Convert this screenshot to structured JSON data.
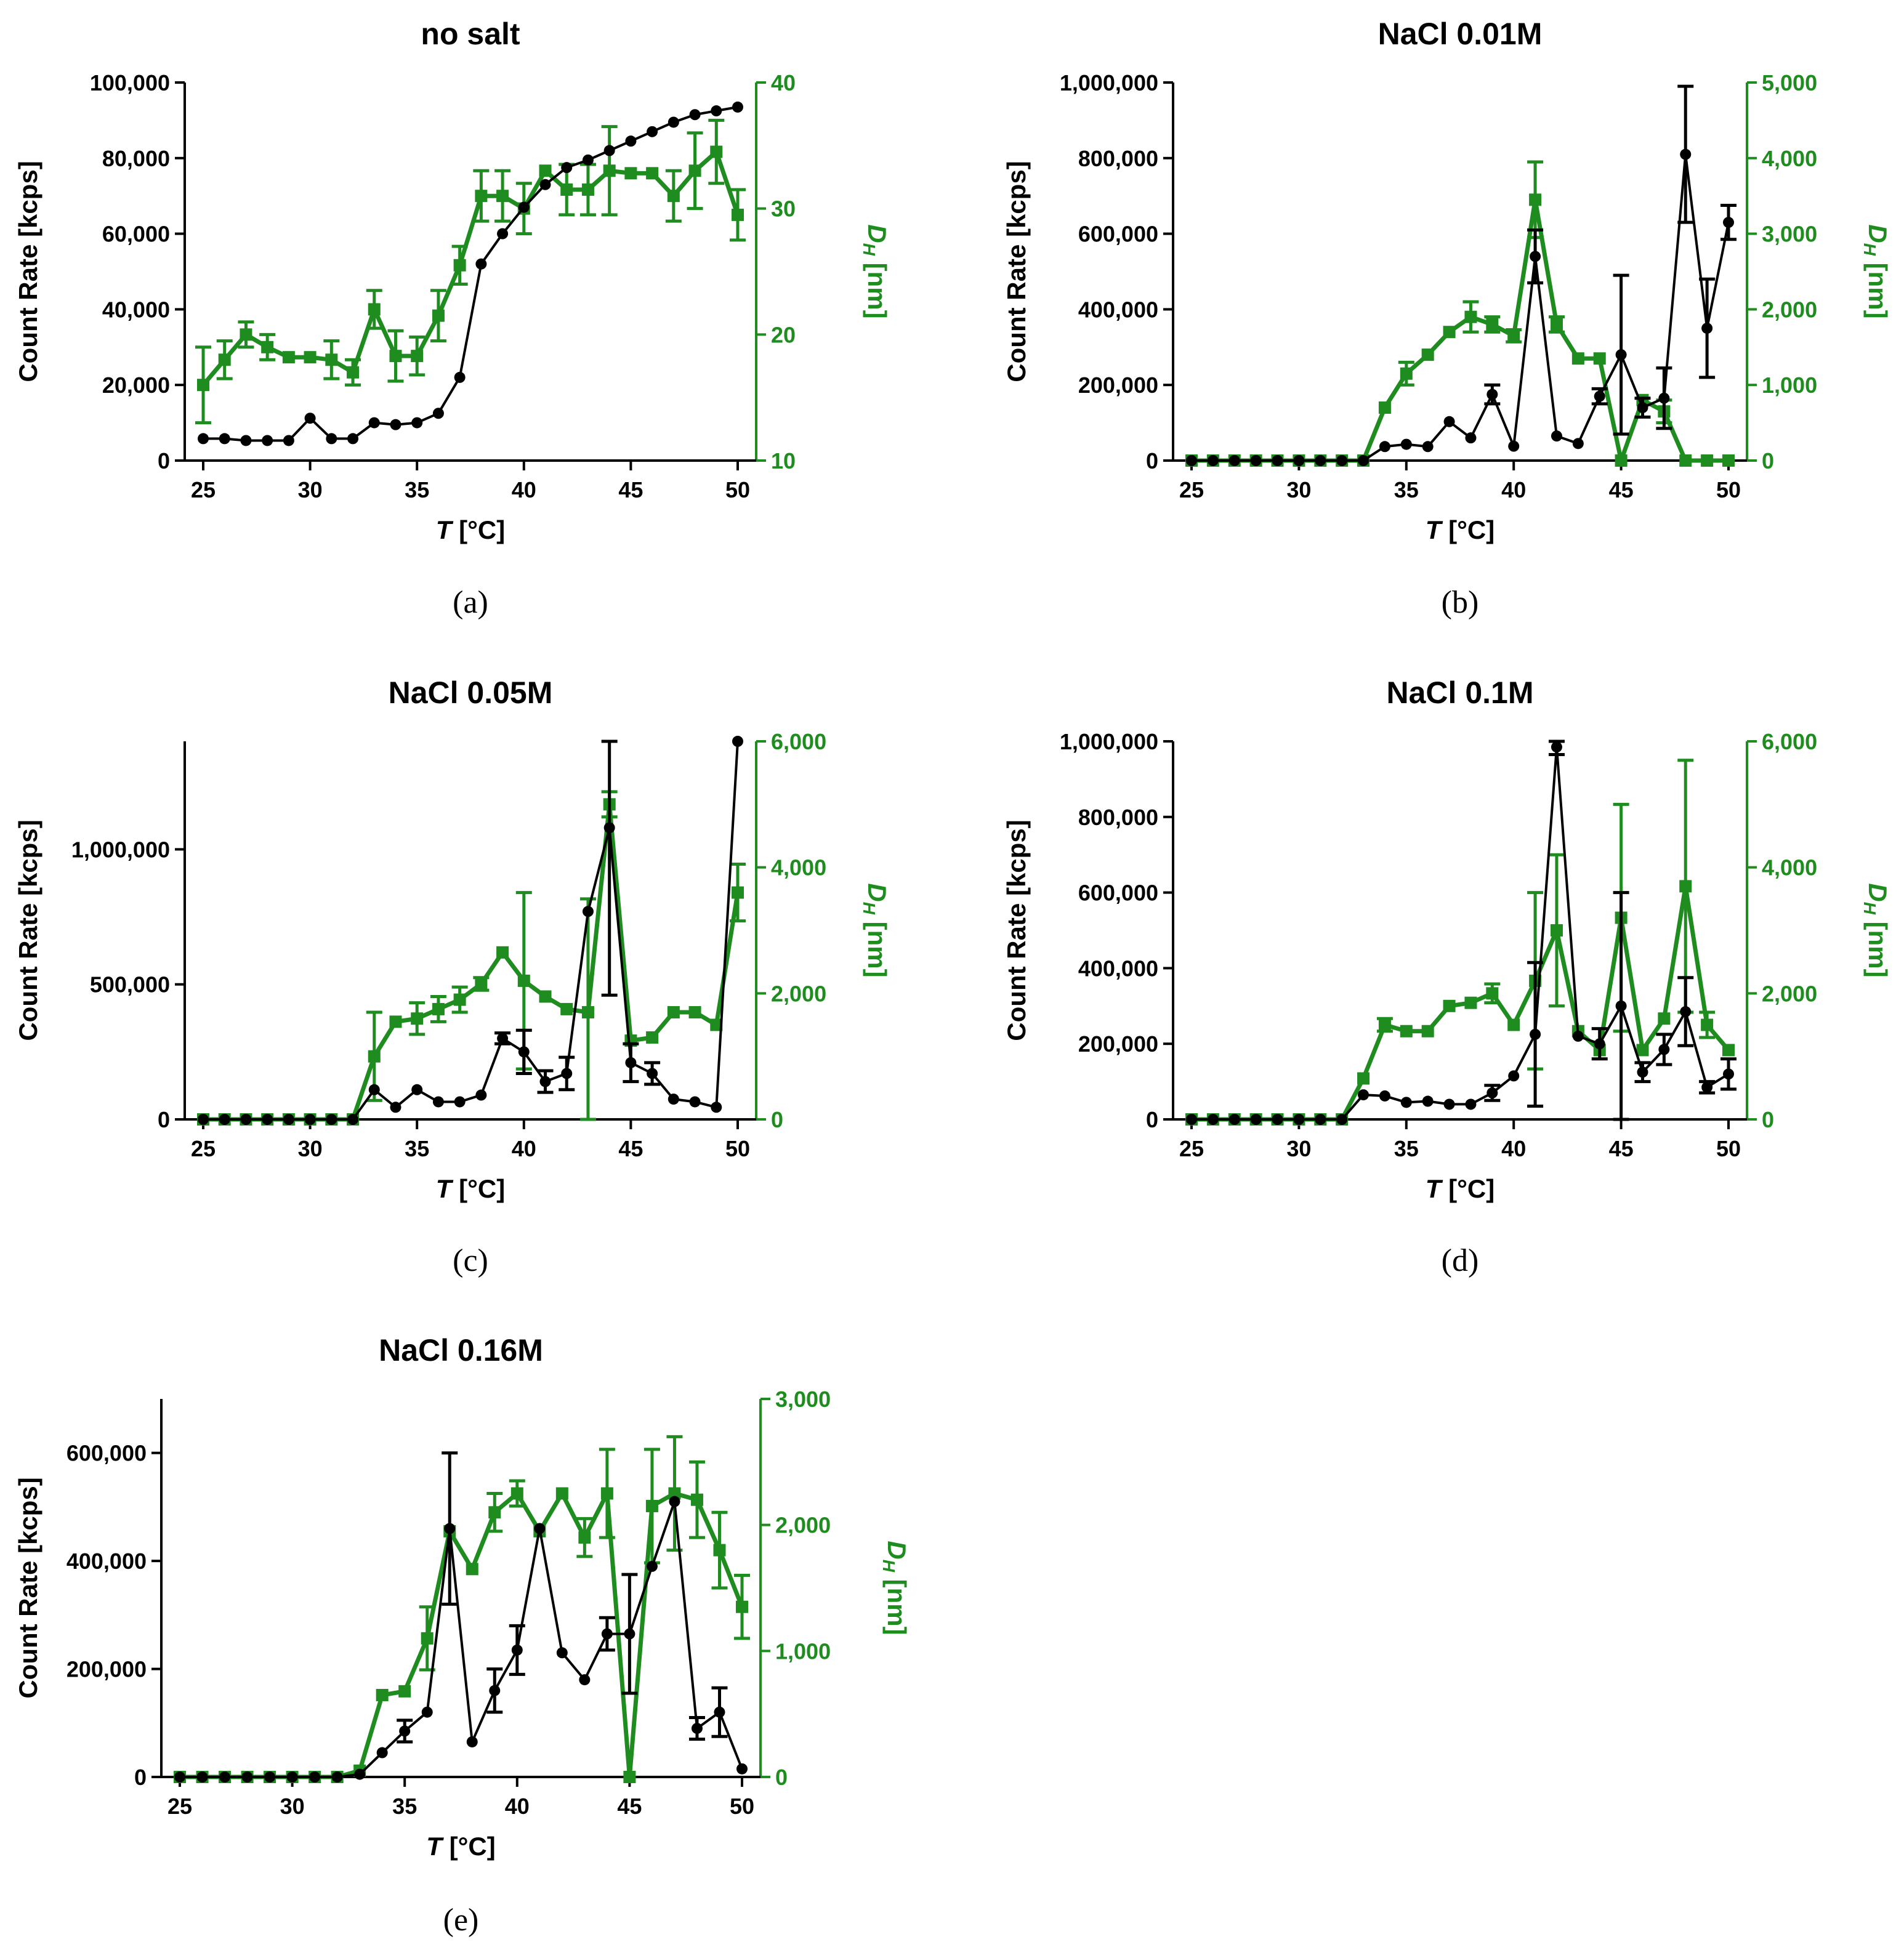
{
  "colors": {
    "count_rate": "#000000",
    "dh": "#1f8c1f"
  },
  "chart_data": [
    {
      "type": "line",
      "panel": "a",
      "caption": "(a)",
      "title": "no salt",
      "xlabel": "T [°C]",
      "ylabel": "Count Rate [kcps]",
      "y2label": "D_H [nm]",
      "xlim": [
        25,
        50
      ],
      "xticks": [
        25,
        30,
        35,
        40,
        45,
        50
      ],
      "ylim": [
        0,
        100000
      ],
      "yticks": [
        0,
        20000,
        40000,
        60000,
        80000,
        100000
      ],
      "ytick_labels": [
        "0",
        "20,000",
        "40,000",
        "60,000",
        "80,000",
        "100,000"
      ],
      "y2lim": [
        10,
        40
      ],
      "y2ticks": [
        10,
        20,
        30,
        40
      ],
      "y2tick_labels": [
        "10",
        "20",
        "30",
        "40"
      ],
      "x": [
        25,
        26,
        27,
        28,
        29,
        30,
        31,
        32,
        33,
        34,
        35,
        36,
        37,
        38,
        39,
        40,
        41,
        42,
        43,
        44,
        45,
        46,
        47,
        48,
        49,
        50
      ],
      "series": [
        {
          "axis": "left",
          "marker": "circle",
          "values": [
            5800,
            5800,
            5300,
            5300,
            5300,
            11200,
            5800,
            5800,
            10000,
            9500,
            10000,
            12500,
            22000,
            52000,
            60000,
            67000,
            73000,
            77500,
            79500,
            82000,
            84500,
            87000,
            89500,
            91500,
            92500,
            93500
          ],
          "errors": [
            0,
            0,
            0,
            0,
            0,
            0,
            0,
            0,
            0,
            0,
            0,
            0,
            0,
            0,
            0,
            0,
            0,
            0,
            0,
            0,
            0,
            0,
            0,
            0,
            0,
            0
          ]
        },
        {
          "axis": "right",
          "marker": "square",
          "values": [
            16,
            18,
            20,
            19,
            18.2,
            18.2,
            18,
            17,
            22,
            18.3,
            18.3,
            21.5,
            25.5,
            31,
            31,
            30,
            33,
            31.5,
            31.5,
            33,
            32.8,
            32.8,
            31,
            33,
            34.5,
            29.5
          ],
          "errors": [
            3,
            1.5,
            1,
            1,
            0,
            0,
            1.5,
            1,
            1.5,
            2,
            1.5,
            2,
            1.5,
            2,
            2,
            2,
            0,
            2,
            2,
            3.5,
            0,
            0,
            2,
            3,
            2.5,
            2
          ]
        }
      ]
    },
    {
      "type": "line",
      "panel": "b",
      "caption": "(b)",
      "title": "NaCl 0.01M",
      "xlabel": "T [°C]",
      "ylabel": "Count Rate [kcps]",
      "y2label": "D_H [nm]",
      "xlim": [
        25,
        50
      ],
      "xticks": [
        25,
        30,
        35,
        40,
        45,
        50
      ],
      "ylim": [
        0,
        1000000
      ],
      "yticks": [
        0,
        200000,
        400000,
        600000,
        800000,
        1000000
      ],
      "ytick_labels": [
        "0",
        "200,000",
        "400,000",
        "600,000",
        "800,000",
        "1,000,000"
      ],
      "y2lim": [
        0,
        5000
      ],
      "y2ticks": [
        0,
        1000,
        2000,
        3000,
        4000,
        5000
      ],
      "y2tick_labels": [
        "0",
        "1,000",
        "2,000",
        "3,000",
        "4,000",
        "5,000"
      ],
      "x": [
        25,
        26,
        27,
        28,
        29,
        30,
        31,
        32,
        33,
        34,
        35,
        36,
        37,
        38,
        39,
        40,
        41,
        42,
        43,
        44,
        45,
        46,
        47,
        48,
        49,
        50
      ],
      "series": [
        {
          "axis": "left",
          "marker": "circle",
          "values": [
            0,
            0,
            0,
            0,
            0,
            0,
            0,
            0,
            0,
            37000,
            43000,
            37000,
            103000,
            60000,
            175000,
            38000,
            540000,
            65000,
            45000,
            170000,
            280000,
            140000,
            165000,
            810000,
            350000,
            630000
          ],
          "errors": [
            0,
            0,
            0,
            0,
            0,
            0,
            0,
            0,
            0,
            0,
            0,
            0,
            0,
            0,
            25000,
            0,
            70000,
            0,
            0,
            20000,
            210000,
            25000,
            80000,
            180000,
            130000,
            45000
          ]
        },
        {
          "axis": "right",
          "marker": "square",
          "values": [
            0,
            0,
            0,
            0,
            0,
            0,
            0,
            0,
            0,
            700,
            1150,
            1400,
            1700,
            1900,
            1800,
            1650,
            3450,
            1800,
            1350,
            1350,
            0,
            800,
            650,
            0,
            0,
            0
          ],
          "errors": [
            0,
            0,
            0,
            0,
            0,
            0,
            0,
            0,
            0,
            0,
            150,
            0,
            0,
            200,
            100,
            80,
            500,
            100,
            0,
            0,
            0,
            0,
            150,
            0,
            0,
            0
          ]
        }
      ]
    },
    {
      "type": "line",
      "panel": "c",
      "caption": "(c)",
      "title": "NaCl 0.05M",
      "xlabel": "T [°C]",
      "ylabel": "Count Rate [kcps]",
      "y2label": "D_H [nm]",
      "xlim": [
        25,
        50
      ],
      "xticks": [
        25,
        30,
        35,
        40,
        45,
        50
      ],
      "ylim": [
        0,
        1400000
      ],
      "yticks": [
        0,
        500000,
        1000000
      ],
      "ytick_labels": [
        "0",
        "500,000",
        "1,000,000"
      ],
      "y2lim": [
        0,
        6000
      ],
      "y2ticks": [
        0,
        2000,
        4000,
        6000
      ],
      "y2tick_labels": [
        "0",
        "2,000",
        "4,000",
        "6,000"
      ],
      "x": [
        25,
        26,
        27,
        28,
        29,
        30,
        31,
        32,
        33,
        34,
        35,
        36,
        37,
        38,
        39,
        40,
        41,
        42,
        43,
        44,
        45,
        46,
        47,
        48,
        49,
        50
      ],
      "series": [
        {
          "axis": "left",
          "marker": "circle",
          "values": [
            0,
            0,
            0,
            0,
            0,
            0,
            0,
            0,
            110000,
            45000,
            110000,
            65000,
            65000,
            90000,
            300000,
            250000,
            140000,
            170000,
            770000,
            1080000,
            210000,
            170000,
            75000,
            65000,
            45000,
            1400000
          ],
          "errors": [
            0,
            0,
            0,
            0,
            0,
            0,
            0,
            0,
            0,
            0,
            0,
            0,
            0,
            0,
            20000,
            80000,
            40000,
            60000,
            0,
            620000,
            70000,
            40000,
            0,
            0,
            0,
            0
          ]
        },
        {
          "axis": "right",
          "marker": "square",
          "values": [
            0,
            0,
            0,
            0,
            0,
            0,
            0,
            0,
            1000,
            1550,
            1600,
            1750,
            1900,
            2150,
            2650,
            2200,
            1950,
            1750,
            1700,
            5000,
            1250,
            1300,
            1700,
            1700,
            1500,
            3600
          ],
          "errors": [
            0,
            0,
            0,
            0,
            0,
            0,
            0,
            0,
            700,
            0,
            250,
            200,
            200,
            100,
            0,
            1400,
            0,
            0,
            1800,
            200,
            0,
            0,
            0,
            0,
            0,
            450
          ]
        }
      ]
    },
    {
      "type": "line",
      "panel": "d",
      "caption": "(d)",
      "title": "NaCl 0.1M",
      "xlabel": "T [°C]",
      "ylabel": "Count Rate [kcps]",
      "y2label": "D_H [nm]",
      "xlim": [
        25,
        50
      ],
      "xticks": [
        25,
        30,
        35,
        40,
        45,
        50
      ],
      "ylim": [
        0,
        1000000
      ],
      "yticks": [
        0,
        200000,
        400000,
        600000,
        800000,
        1000000
      ],
      "ytick_labels": [
        "0",
        "200,000",
        "400,000",
        "600,000",
        "800,000",
        "1,000,000"
      ],
      "y2lim": [
        0,
        6000
      ],
      "y2ticks": [
        0,
        2000,
        4000,
        6000
      ],
      "y2tick_labels": [
        "0",
        "2,000",
        "4,000",
        "6,000"
      ],
      "x": [
        25,
        26,
        27,
        28,
        29,
        30,
        31,
        32,
        33,
        34,
        35,
        36,
        37,
        38,
        39,
        40,
        41,
        42,
        43,
        44,
        45,
        46,
        47,
        48,
        49,
        50
      ],
      "series": [
        {
          "axis": "left",
          "marker": "circle",
          "values": [
            0,
            0,
            0,
            0,
            0,
            0,
            0,
            0,
            65000,
            62000,
            45000,
            48000,
            40000,
            40000,
            70000,
            115000,
            225000,
            985000,
            220000,
            200000,
            300000,
            125000,
            185000,
            285000,
            85000,
            120000
          ],
          "errors": [
            0,
            0,
            0,
            0,
            0,
            0,
            0,
            0,
            0,
            0,
            0,
            0,
            0,
            0,
            20000,
            0,
            190000,
            20000,
            0,
            40000,
            300000,
            25000,
            40000,
            90000,
            15000,
            40000
          ]
        },
        {
          "axis": "right",
          "marker": "square",
          "values": [
            0,
            0,
            0,
            0,
            0,
            0,
            0,
            0,
            650,
            1500,
            1400,
            1400,
            1800,
            1850,
            2000,
            1500,
            2200,
            3000,
            1400,
            1100,
            3200,
            1100,
            1600,
            3700,
            1500,
            1100
          ],
          "errors": [
            0,
            0,
            0,
            0,
            0,
            0,
            0,
            0,
            0,
            100,
            0,
            0,
            0,
            0,
            150,
            0,
            1400,
            1200,
            0,
            0,
            1800,
            0,
            0,
            2000,
            200,
            0
          ]
        }
      ]
    },
    {
      "type": "line",
      "panel": "e",
      "caption": "(e)",
      "title": "NaCl 0.16M",
      "xlabel": "T [°C]",
      "ylabel": "Count Rate [kcps]",
      "y2label": "D_H [nm]",
      "xlim": [
        25,
        50
      ],
      "xticks": [
        25,
        30,
        35,
        40,
        45,
        50
      ],
      "ylim": [
        0,
        700000
      ],
      "yticks": [
        0,
        200000,
        400000,
        600000
      ],
      "ytick_labels": [
        "0",
        "200,000",
        "400,000",
        "600,000"
      ],
      "y2lim": [
        0,
        3000
      ],
      "y2ticks": [
        0,
        1000,
        2000,
        3000
      ],
      "y2tick_labels": [
        "0",
        "1,000",
        "2,000",
        "3,000"
      ],
      "x": [
        25,
        26,
        27,
        28,
        29,
        30,
        31,
        32,
        33,
        34,
        35,
        36,
        37,
        38,
        39,
        40,
        41,
        42,
        43,
        44,
        45,
        46,
        47,
        48,
        49,
        50
      ],
      "series": [
        {
          "axis": "left",
          "marker": "circle",
          "values": [
            0,
            0,
            0,
            0,
            0,
            0,
            0,
            0,
            5000,
            45000,
            85000,
            120000,
            460000,
            65000,
            160000,
            235000,
            460000,
            230000,
            180000,
            265000,
            265000,
            390000,
            510000,
            90000,
            120000,
            15000
          ],
          "errors": [
            0,
            0,
            0,
            0,
            0,
            0,
            0,
            0,
            0,
            0,
            20000,
            0,
            140000,
            0,
            40000,
            45000,
            0,
            0,
            0,
            30000,
            110000,
            0,
            0,
            20000,
            45000,
            0
          ]
        },
        {
          "axis": "right",
          "marker": "square",
          "values": [
            0,
            0,
            0,
            0,
            0,
            0,
            0,
            0,
            50,
            650,
            680,
            1100,
            1950,
            1650,
            2100,
            2250,
            1950,
            2250,
            1900,
            2250,
            0,
            2150,
            2250,
            2200,
            1800,
            1350
          ],
          "errors": [
            0,
            0,
            0,
            0,
            0,
            0,
            0,
            0,
            0,
            0,
            0,
            250,
            0,
            0,
            150,
            100,
            0,
            0,
            150,
            350,
            0,
            450,
            450,
            300,
            300,
            250
          ]
        }
      ]
    }
  ]
}
